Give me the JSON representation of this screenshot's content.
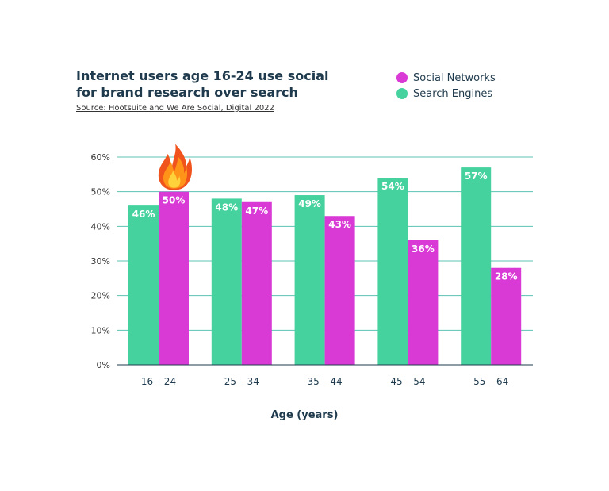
{
  "chart_data": {
    "type": "bar",
    "title": [
      "Internet users age 16-24 use social",
      "for brand research over search"
    ],
    "subtitle": "Source: Hootsuite and We Are Social, Digital 2022",
    "categories": [
      "16 – 24",
      "25 – 34",
      "35 – 44",
      "45 – 54",
      "55 – 64"
    ],
    "series": [
      {
        "name": "Search Engines",
        "values": [
          46,
          48,
          49,
          54,
          57
        ],
        "labels": [
          "46%",
          "48%",
          "49%",
          "54%",
          "57%"
        ],
        "color": "#46d29e"
      },
      {
        "name": "Social Networks",
        "values": [
          50,
          47,
          43,
          36,
          28
        ],
        "labels": [
          "50%",
          "47%",
          "43%",
          "36%",
          "28%"
        ],
        "color": "#d93ad6"
      }
    ],
    "legend_order": [
      "Social Networks",
      "Search Engines"
    ],
    "legend_position": "top-right",
    "xlabel": "Age (years)",
    "ylabel": "",
    "ylim": [
      0,
      60
    ],
    "yticks": [
      0,
      10,
      20,
      30,
      40,
      50,
      60
    ],
    "ytick_labels": [
      "0%",
      "10%",
      "20%",
      "30%",
      "40%",
      "50%",
      "60%"
    ],
    "grid": true,
    "gridline_color": "#5cc3b3",
    "annotation_icon": "fire-icon"
  }
}
